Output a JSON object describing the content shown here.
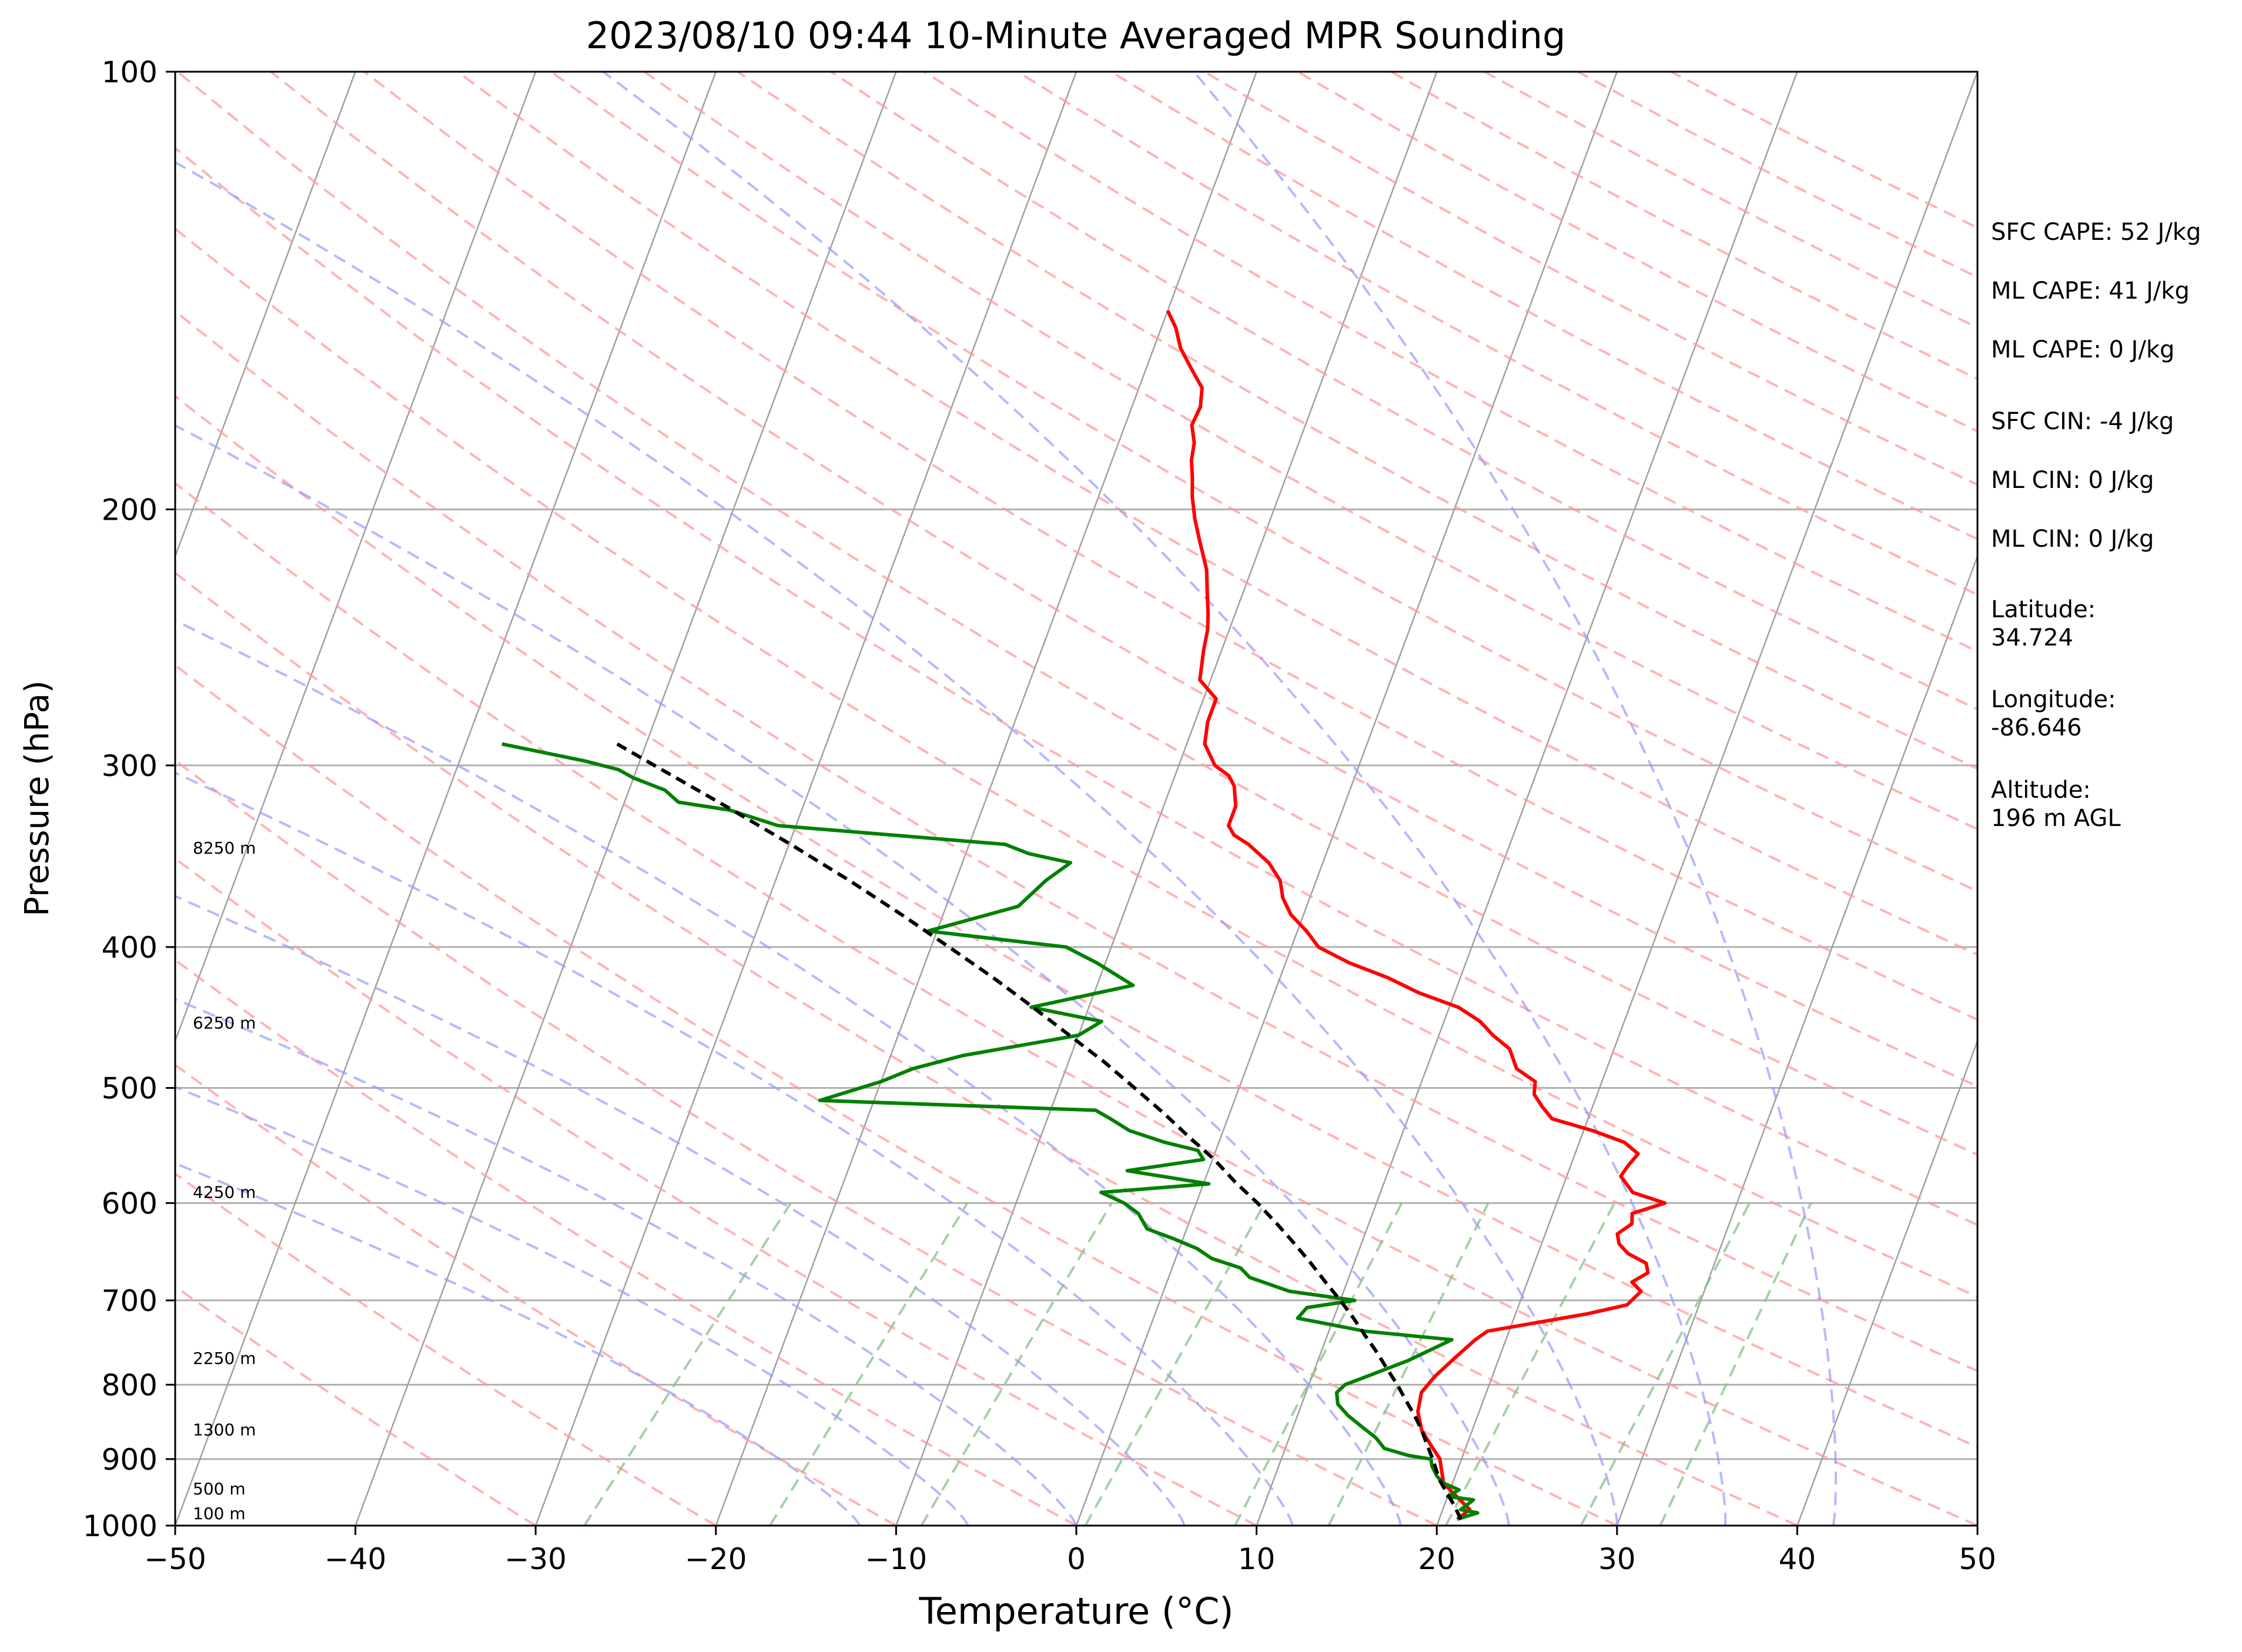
{
  "chart_data": {
    "type": "line",
    "title": "2023/08/10 09:44 10-Minute Averaged MPR Sounding",
    "xlabel": "Temperature (°C)",
    "ylabel": "Pressure (hPa)",
    "xlim": [
      -50,
      50
    ],
    "ylim": [
      1000,
      100
    ],
    "y_scale": "log",
    "skew": "skew-T",
    "grid": true,
    "x_ticks": [
      "−50",
      "−40",
      "−30",
      "−20",
      "−10",
      "0",
      "10",
      "20",
      "30",
      "40",
      "50"
    ],
    "x_tick_values": [
      -50,
      -40,
      -30,
      -20,
      -10,
      0,
      10,
      20,
      30,
      40,
      50
    ],
    "y_ticks": [
      "100",
      "200",
      "300",
      "400",
      "500",
      "600",
      "700",
      "800",
      "900",
      "1000"
    ],
    "y_tick_values": [
      100,
      200,
      300,
      400,
      500,
      600,
      700,
      800,
      900,
      1000
    ],
    "height_labels": [
      {
        "text": "100 m",
        "p": 990
      },
      {
        "text": "500 m",
        "p": 952
      },
      {
        "text": "1300 m",
        "p": 867
      },
      {
        "text": "2250 m",
        "p": 774
      },
      {
        "text": "4250 m",
        "p": 595
      },
      {
        "text": "6250 m",
        "p": 455
      },
      {
        "text": "8250 m",
        "p": 345
      }
    ],
    "series": [
      {
        "color": "#ff0000",
        "points": [
          [
            21,
            990
          ],
          [
            21.5,
            975
          ],
          [
            20.5,
            955
          ],
          [
            19.5,
            935
          ],
          [
            18.8,
            900
          ],
          [
            18,
            880
          ],
          [
            17.2,
            860
          ],
          [
            16.6,
            835
          ],
          [
            16.4,
            810
          ],
          [
            16.8,
            790
          ],
          [
            17.6,
            765
          ],
          [
            18.3,
            745
          ],
          [
            18.8,
            735
          ],
          [
            24,
            715
          ],
          [
            26,
            705
          ],
          [
            26.5,
            690
          ],
          [
            25.8,
            680
          ],
          [
            26.5,
            670
          ],
          [
            26.2,
            660
          ],
          [
            25,
            650
          ],
          [
            24.3,
            640
          ],
          [
            24,
            630
          ],
          [
            24.6,
            620
          ],
          [
            24.4,
            610
          ],
          [
            26,
            600
          ],
          [
            24,
            590
          ],
          [
            23,
            575
          ],
          [
            23.2,
            565
          ],
          [
            23.5,
            555
          ],
          [
            22.5,
            545
          ],
          [
            20.5,
            535
          ],
          [
            18,
            525
          ],
          [
            17.2,
            515
          ],
          [
            16.5,
            505
          ],
          [
            16.3,
            495
          ],
          [
            15,
            485
          ],
          [
            14.2,
            470
          ],
          [
            13,
            460
          ],
          [
            12,
            450
          ],
          [
            10.5,
            440
          ],
          [
            8,
            430
          ],
          [
            6,
            420
          ],
          [
            3.5,
            410
          ],
          [
            1.5,
            400
          ],
          [
            0.5,
            390
          ],
          [
            -0.7,
            380
          ],
          [
            -1.5,
            370
          ],
          [
            -2,
            360
          ],
          [
            -3,
            350
          ],
          [
            -4.5,
            340
          ],
          [
            -5.5,
            335
          ],
          [
            -6,
            330
          ],
          [
            -6,
            320
          ],
          [
            -6.5,
            310
          ],
          [
            -7,
            305
          ],
          [
            -8,
            300
          ],
          [
            -9,
            290
          ],
          [
            -9.3,
            280
          ],
          [
            -9.3,
            270
          ],
          [
            -10.6,
            262
          ],
          [
            -11,
            250
          ],
          [
            -11.2,
            242
          ],
          [
            -11.5,
            236
          ],
          [
            -12,
            228
          ],
          [
            -12.5,
            220
          ],
          [
            -13.5,
            210
          ],
          [
            -14.2,
            203
          ],
          [
            -14.8,
            196
          ],
          [
            -15.2,
            190
          ],
          [
            -15.6,
            185
          ],
          [
            -15.8,
            180
          ],
          [
            -16.3,
            175
          ],
          [
            -16.2,
            170
          ],
          [
            -16.5,
            165
          ],
          [
            -17.5,
            160
          ],
          [
            -18.5,
            155
          ],
          [
            -19.2,
            150
          ],
          [
            -20,
            146
          ]
        ]
      },
      {
        "color": "#008000",
        "points": [
          [
            21,
            990
          ],
          [
            22,
            980
          ],
          [
            21,
            975
          ],
          [
            21.5,
            960
          ],
          [
            20,
            955
          ],
          [
            20.5,
            945
          ],
          [
            19.5,
            935
          ],
          [
            19,
            925
          ],
          [
            18.5,
            910
          ],
          [
            18.3,
            900
          ],
          [
            17,
            895
          ],
          [
            15.5,
            885
          ],
          [
            14.8,
            870
          ],
          [
            13.8,
            855
          ],
          [
            12.8,
            840
          ],
          [
            12,
            825
          ],
          [
            11.7,
            810
          ],
          [
            12,
            800
          ],
          [
            13,
            790
          ],
          [
            15,
            770
          ],
          [
            17,
            745
          ],
          [
            12,
            735
          ],
          [
            8,
            720
          ],
          [
            8.3,
            708
          ],
          [
            10.8,
            700
          ],
          [
            7,
            690
          ],
          [
            4.5,
            675
          ],
          [
            3.8,
            665
          ],
          [
            2,
            655
          ],
          [
            1,
            645
          ],
          [
            -0.5,
            635
          ],
          [
            -2.2,
            625
          ],
          [
            -3,
            610
          ],
          [
            -4,
            600
          ],
          [
            -5.5,
            590
          ],
          [
            0.3,
            582
          ],
          [
            -4.5,
            570
          ],
          [
            -0.5,
            560
          ],
          [
            -1,
            552
          ],
          [
            -3,
            545
          ],
          [
            -5.2,
            535
          ],
          [
            -6.5,
            525
          ],
          [
            -7.5,
            518
          ],
          [
            -23,
            510
          ],
          [
            -20,
            495
          ],
          [
            -18.5,
            485
          ],
          [
            -16,
            475
          ],
          [
            -10,
            460
          ],
          [
            -9,
            450
          ],
          [
            -13.2,
            440
          ],
          [
            -8,
            425
          ],
          [
            -10.5,
            410
          ],
          [
            -12.5,
            400
          ],
          [
            -20.5,
            390
          ],
          [
            -16,
            375
          ],
          [
            -15,
            360
          ],
          [
            -14,
            350
          ],
          [
            -16.5,
            345
          ],
          [
            -18,
            340
          ],
          [
            -31,
            330
          ],
          [
            -34,
            322
          ],
          [
            -37,
            318
          ],
          [
            -38,
            312
          ],
          [
            -40,
            306
          ],
          [
            -41,
            302
          ],
          [
            -43,
            298
          ],
          [
            -48,
            290
          ]
        ]
      },
      {
        "color": "#000000",
        "points": [
          [
            21.2,
            990
          ],
          [
            20.6,
            970
          ],
          [
            19.9,
            950
          ],
          [
            19.2,
            930
          ],
          [
            18.4,
            900
          ],
          [
            17.8,
            880
          ],
          [
            17.2,
            860
          ],
          [
            16.5,
            840
          ],
          [
            15.7,
            820
          ],
          [
            14.9,
            800
          ],
          [
            14.0,
            780
          ],
          [
            13.1,
            760
          ],
          [
            12.1,
            740
          ],
          [
            11.1,
            720
          ],
          [
            10.0,
            700
          ],
          [
            8.8,
            680
          ],
          [
            7.6,
            660
          ],
          [
            6.3,
            640
          ],
          [
            4.9,
            620
          ],
          [
            3.4,
            600
          ],
          [
            1.7,
            580
          ],
          [
            0.1,
            560
          ],
          [
            -1.8,
            540
          ],
          [
            -3.7,
            520
          ],
          [
            -5.8,
            500
          ],
          [
            -8.0,
            480
          ],
          [
            -10.5,
            460
          ],
          [
            -13.1,
            440
          ],
          [
            -15.9,
            420
          ],
          [
            -19.0,
            400
          ],
          [
            -22.3,
            380
          ],
          [
            -25.9,
            360
          ],
          [
            -29.9,
            340
          ],
          [
            -34.3,
            320
          ],
          [
            -39.1,
            300
          ],
          [
            -41.6,
            290
          ]
        ]
      }
    ]
  },
  "side_panel": [
    {
      "lines": [
        "SFC CAPE: 52 J/kg"
      ]
    },
    {
      "lines": [
        "ML CAPE: 41 J/kg"
      ]
    },
    {
      "lines": [
        "ML CAPE: 0 J/kg"
      ]
    },
    {
      "lines": [
        "SFC CIN: -4 J/kg"
      ]
    },
    {
      "lines": [
        "ML CIN: 0 J/kg"
      ]
    },
    {
      "lines": [
        "ML CIN: 0 J/kg"
      ]
    },
    {
      "lines": [
        "Latitude:",
        "34.724"
      ]
    },
    {
      "lines": [
        "Longitude:",
        "-86.646"
      ]
    },
    {
      "lines": [
        "Altitude:",
        "196 m AGL"
      ]
    }
  ],
  "colors": {
    "dry_adiabat": "#ff9999",
    "moist_adiabat": "#9999ff",
    "mixing_ratio": "#88c088",
    "isotherm": "#a0a0a0"
  }
}
